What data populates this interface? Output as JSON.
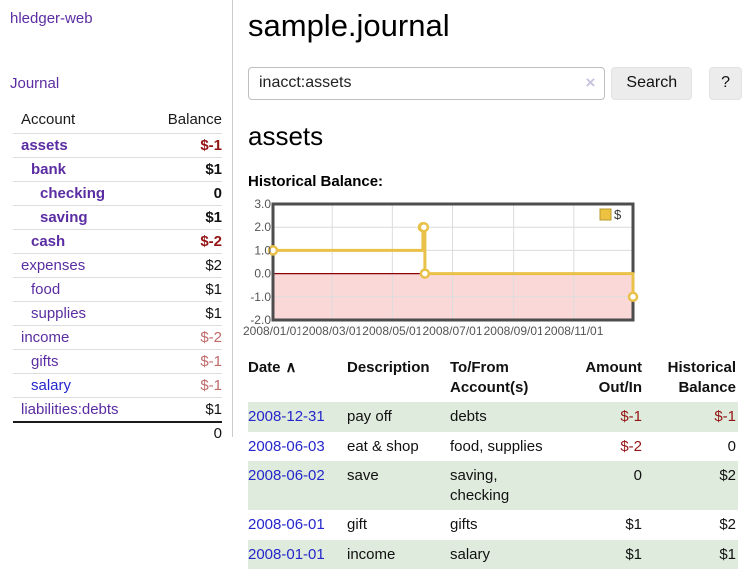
{
  "app": {
    "brand": "hledger-web",
    "nav_journal": "Journal"
  },
  "sidebar": {
    "columns": {
      "account": "Account",
      "balance": "Balance"
    },
    "accounts": [
      {
        "name": "assets",
        "depth": 1,
        "balance": "$-1",
        "bold": true,
        "neg": "strong",
        "link": "purple"
      },
      {
        "name": "bank",
        "depth": 2,
        "balance": "$1",
        "bold": true,
        "neg": "none",
        "link": "purple"
      },
      {
        "name": "checking",
        "depth": 3,
        "balance": "0",
        "bold": true,
        "neg": "none",
        "link": "purple"
      },
      {
        "name": "saving",
        "depth": 3,
        "balance": "$1",
        "bold": true,
        "neg": "none",
        "link": "purple"
      },
      {
        "name": "cash",
        "depth": 2,
        "balance": "$-2",
        "bold": true,
        "neg": "strong",
        "link": "purple"
      },
      {
        "name": "expenses",
        "depth": 1,
        "balance": "$2",
        "bold": false,
        "neg": "none",
        "link": "purple"
      },
      {
        "name": "food",
        "depth": 2,
        "balance": "$1",
        "bold": false,
        "neg": "none",
        "link": "purple"
      },
      {
        "name": "supplies",
        "depth": 2,
        "balance": "$1",
        "bold": false,
        "neg": "none",
        "link": "purple"
      },
      {
        "name": "income",
        "depth": 1,
        "balance": "$-2",
        "bold": false,
        "neg": "soft",
        "link": "purple"
      },
      {
        "name": "gifts",
        "depth": 2,
        "balance": "$-1",
        "bold": false,
        "neg": "soft",
        "link": "purple"
      },
      {
        "name": "salary",
        "depth": 2,
        "balance": "$-1",
        "bold": false,
        "neg": "soft",
        "link": "blue"
      },
      {
        "name": "liabilities:debts",
        "depth": 1,
        "balance": "$1",
        "bold": false,
        "neg": "none",
        "link": "purple"
      }
    ],
    "total": "0"
  },
  "header": {
    "title": "sample.journal"
  },
  "search": {
    "value": "inacct:assets",
    "clear_icon": "×",
    "button_label": "Search",
    "help_label": "?"
  },
  "account_page": {
    "heading": "assets",
    "chart_label": "Historical Balance:"
  },
  "chart_data": {
    "type": "line",
    "step": true,
    "title": "Historical Balance:",
    "legend": {
      "label": "$",
      "position": "top-right"
    },
    "series": [
      {
        "name": "$",
        "points": [
          {
            "date": "2008-01-01",
            "value": 1
          },
          {
            "date": "2008-06-01",
            "value": 2
          },
          {
            "date": "2008-06-02",
            "value": 2
          },
          {
            "date": "2008-06-03",
            "value": 0
          },
          {
            "date": "2008-12-31",
            "value": -1
          }
        ]
      }
    ],
    "xlim": [
      "2008-01-01",
      "2008-12-31"
    ],
    "ylim": [
      -2,
      3
    ],
    "x_ticks": [
      {
        "label": "2008/01/01",
        "date": "2008-01-01"
      },
      {
        "label": "2008/03/01",
        "date": "2008-03-01"
      },
      {
        "label": "2008/05/01",
        "date": "2008-05-01"
      },
      {
        "label": "2008/07/01",
        "date": "2008-07-01"
      },
      {
        "label": "2008/09/01",
        "date": "2008-09-01"
      },
      {
        "label": "2008/11/01",
        "date": "2008-11-01"
      }
    ],
    "y_ticks": [
      {
        "label": "3.0",
        "value": 3
      },
      {
        "label": "2.0",
        "value": 2
      },
      {
        "label": "1.0",
        "value": 1
      },
      {
        "label": "0.0",
        "value": 0
      },
      {
        "label": "-1.0",
        "value": -1
      },
      {
        "label": "-2.0",
        "value": -2
      }
    ],
    "grid": true,
    "colors": {
      "line": "#e9c048",
      "marker_fill": "#ffffff",
      "negative_fill": "#fbd8d8",
      "zero_line": "#8b0000",
      "grid": "#dcdcdc",
      "border": "#4d4d4d",
      "tick_text": "#545454",
      "legend_swatch": "#edc240"
    }
  },
  "register": {
    "columns": {
      "date": "Date",
      "sort_icon": "∧",
      "description": "Description",
      "accounts": [
        "To/From",
        "Account(s)"
      ],
      "amount": [
        "Amount",
        "Out/In"
      ],
      "balance": [
        "Historical",
        "Balance"
      ]
    },
    "rows": [
      {
        "date": "2008-12-31",
        "description": "pay off",
        "accounts": [
          "debts"
        ],
        "amount": "$-1",
        "balance": "$-1",
        "amount_neg": true,
        "balance_neg": true,
        "shade": true
      },
      {
        "date": "2008-06-03",
        "description": "eat & shop",
        "accounts": [
          "food, supplies"
        ],
        "amount": "$-2",
        "balance": "0",
        "amount_neg": true,
        "balance_neg": false,
        "shade": false
      },
      {
        "date": "2008-06-02",
        "description": "save",
        "accounts": [
          "saving,",
          "checking"
        ],
        "amount": "0",
        "balance": "$2",
        "amount_neg": false,
        "balance_neg": false,
        "shade": true
      },
      {
        "date": "2008-06-01",
        "description": "gift",
        "accounts": [
          "gifts"
        ],
        "amount": "$1",
        "balance": "$2",
        "amount_neg": false,
        "balance_neg": false,
        "shade": false
      },
      {
        "date": "2008-01-01",
        "description": "income",
        "accounts": [
          "salary"
        ],
        "amount": "$1",
        "balance": "$1",
        "amount_neg": false,
        "balance_neg": false,
        "shade": true
      }
    ]
  }
}
